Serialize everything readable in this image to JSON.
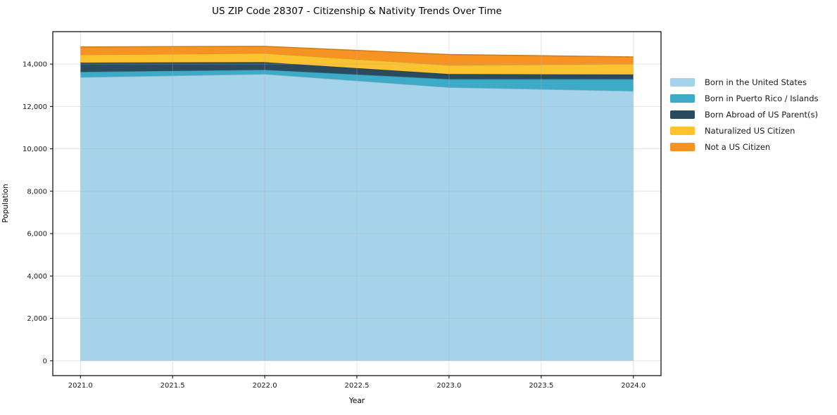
{
  "chart_data": {
    "type": "area",
    "stacked": true,
    "title": "US ZIP Code 28307 - Citizenship & Nativity Trends Over Time",
    "xlabel": "Year",
    "ylabel": "Population",
    "x": [
      2021,
      2022,
      2023,
      2024
    ],
    "series": [
      {
        "name": "Born in the United States",
        "color": "#a5d3ea",
        "values": [
          13380,
          13530,
          12900,
          12730
        ]
      },
      {
        "name": "Born in Puerto Rico / Islands",
        "color": "#3daac7",
        "values": [
          250,
          200,
          390,
          560
        ]
      },
      {
        "name": "Born Abroad of US Parent(s)",
        "color": "#2a4a5e",
        "values": [
          440,
          360,
          240,
          220
        ]
      },
      {
        "name": "Naturalized US Citizen",
        "color": "#fcc32f",
        "values": [
          370,
          420,
          420,
          500
        ]
      },
      {
        "name": "Not a US Citizen",
        "color": "#f69322",
        "values": [
          370,
          330,
          500,
          330
        ]
      }
    ],
    "xlim": [
      2020.85,
      2024.15
    ],
    "ylim": [
      -700,
      15530
    ],
    "xticks": {
      "values": [
        2021.0,
        2021.5,
        2022.0,
        2022.5,
        2023.0,
        2023.5,
        2024.0
      ],
      "labels": [
        "2021.0",
        "2021.5",
        "2022.0",
        "2022.5",
        "2023.0",
        "2023.5",
        "2024.0"
      ]
    },
    "yticks": {
      "values": [
        0,
        2000,
        4000,
        6000,
        8000,
        10000,
        12000,
        14000
      ],
      "labels": [
        "0",
        "2,000",
        "4,000",
        "6,000",
        "8,000",
        "10,000",
        "12,000",
        "14,000"
      ]
    },
    "grid": true,
    "legend_position": "right-outside",
    "colors": {
      "grid": "#b0b0b0",
      "spine": "#000000",
      "tick_text": "#1a1a1a",
      "background": "#ffffff"
    }
  }
}
